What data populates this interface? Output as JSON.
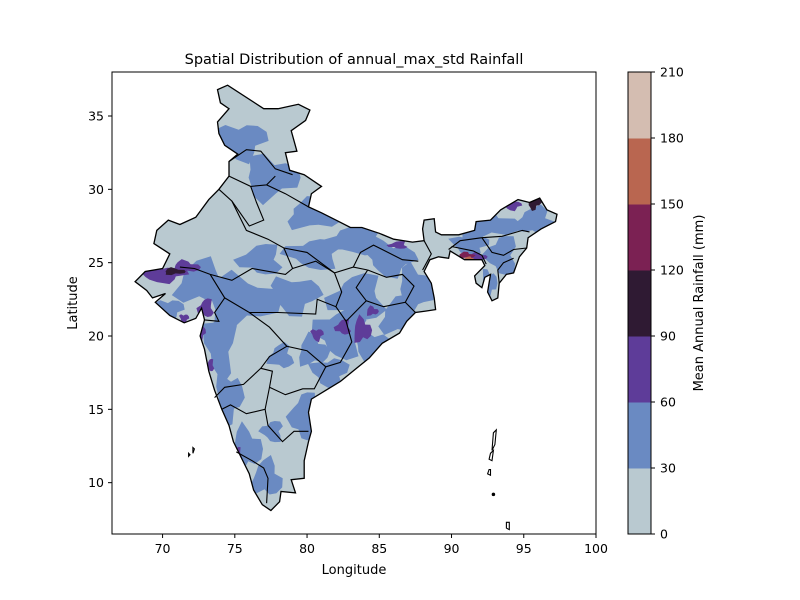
{
  "chart_data": {
    "type": "heatmap",
    "title": "Spatial Distribution of annual_max_std Rainfall",
    "xlabel": "Longitude",
    "ylabel": "Latitude",
    "xlim": [
      66.5,
      100
    ],
    "ylim": [
      6.5,
      38
    ],
    "xticks": [
      "70",
      "75",
      "80",
      "85",
      "90",
      "95",
      "100"
    ],
    "yticks": [
      "10",
      "15",
      "20",
      "25",
      "30",
      "35"
    ],
    "grid": false,
    "colorbar": {
      "label": "Mean Annual Rainfall (mm)",
      "levels": [
        "0",
        "30",
        "60",
        "90",
        "120",
        "150",
        "180",
        "210"
      ],
      "colors": [
        "#b9c9d0",
        "#6a8ac2",
        "#5e3c99",
        "#2f1a33",
        "#7b2153",
        "#b96650",
        "#d4bdb1"
      ]
    },
    "regions": [
      {
        "label": "0-30",
        "lon": 78,
        "lat": 20
      },
      {
        "label": "30-60",
        "lon": 82,
        "lat": 25
      },
      {
        "label": "60-90",
        "lon": 70.5,
        "lat": 24
      },
      {
        "label": "90-120",
        "lon": 95.7,
        "lat": 29.1
      },
      {
        "label": "120-150",
        "lon": 91,
        "lat": 25.5
      },
      {
        "label": "150-180",
        "lon": 91.2,
        "lat": 25.3
      }
    ]
  }
}
